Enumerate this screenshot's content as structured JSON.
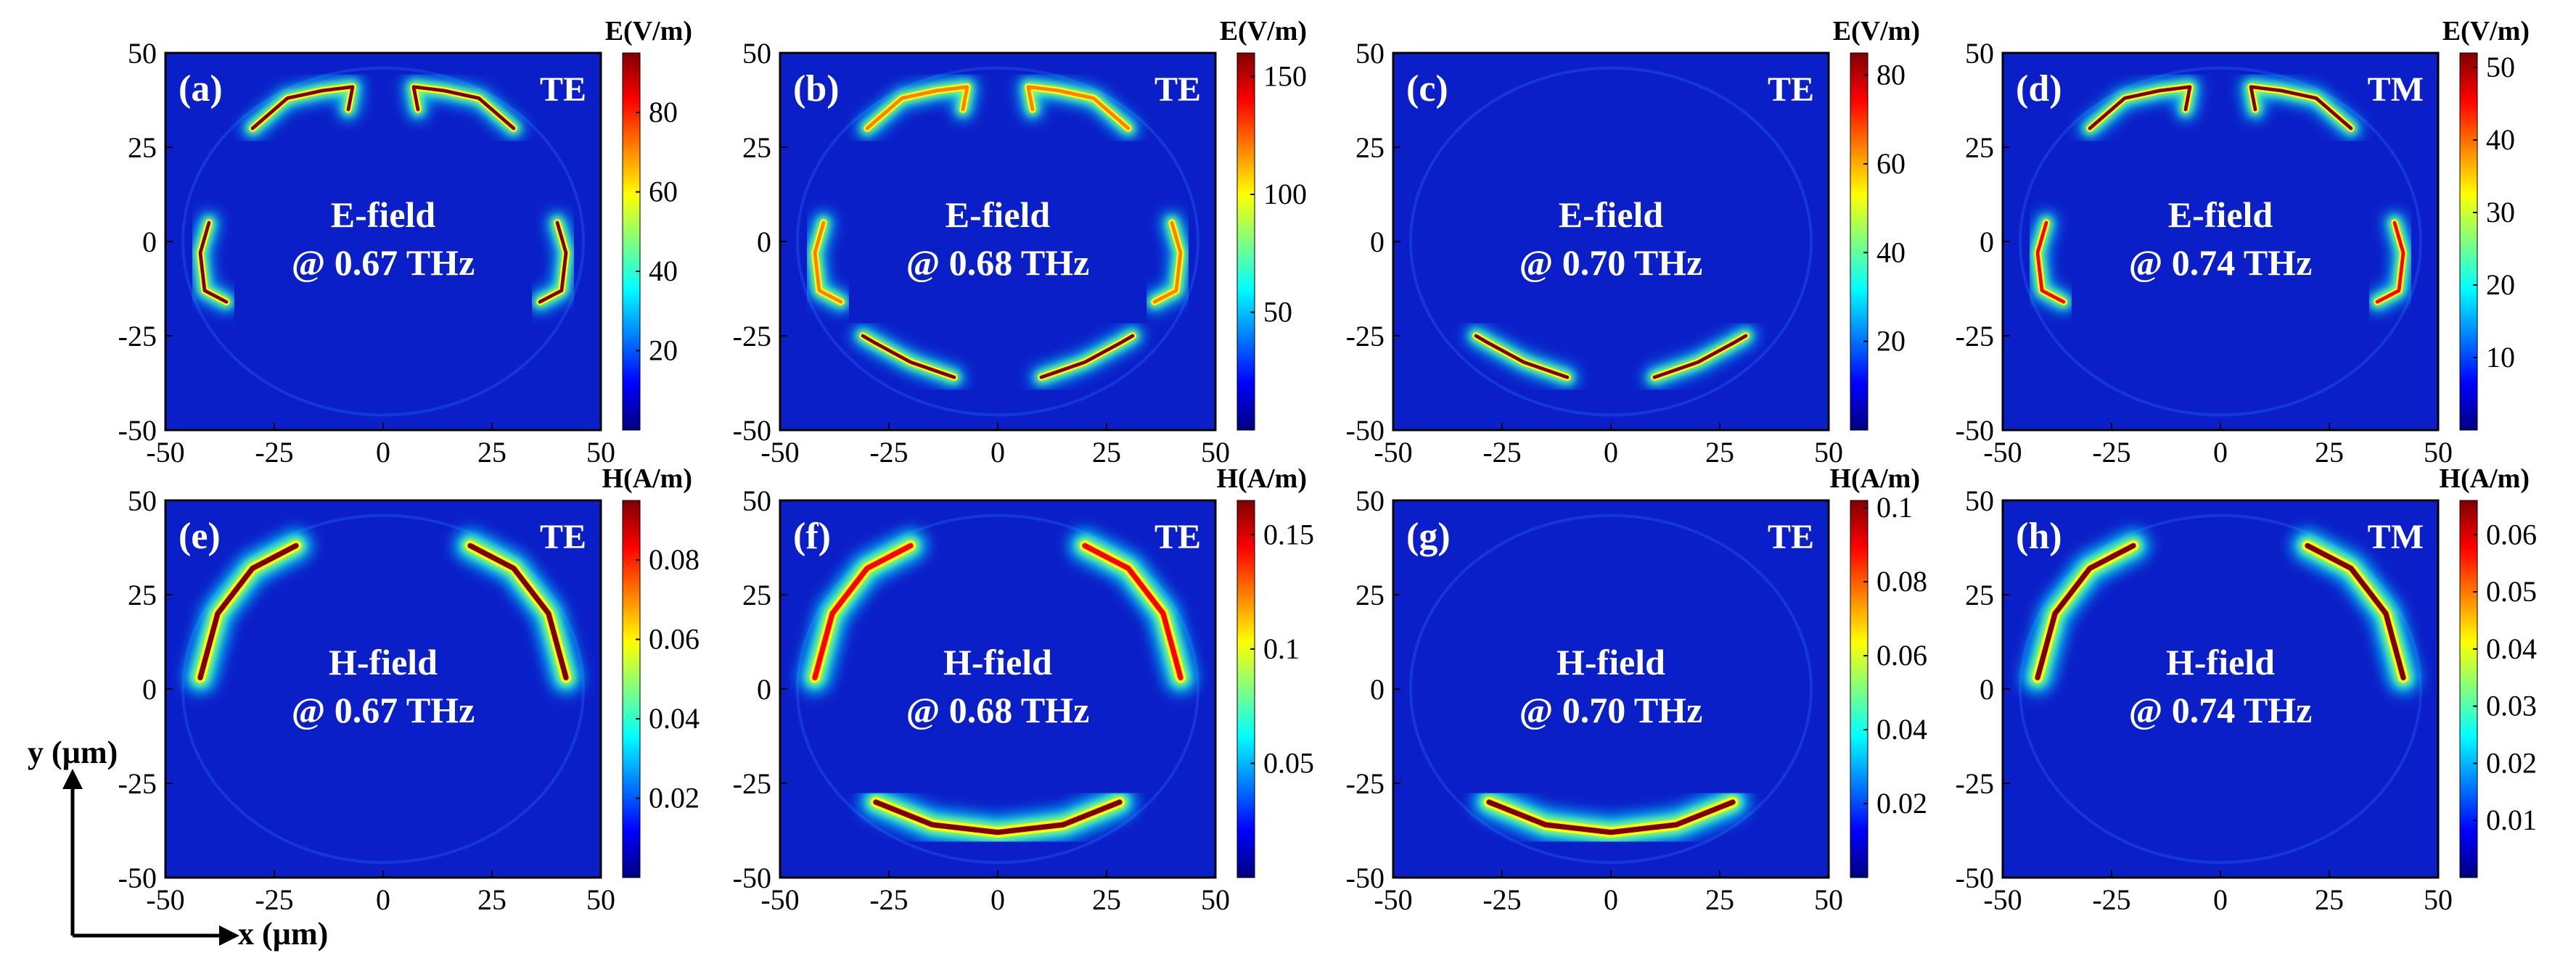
{
  "figure": {
    "axis_hint": {
      "y_label": "y (µm)",
      "x_label": "x (µm)"
    },
    "colors": {
      "background": "#0b1fc8",
      "colormap": [
        "#00007f",
        "#0000ff",
        "#0080ff",
        "#00ffff",
        "#80ff80",
        "#ffff00",
        "#ff8000",
        "#ff0000",
        "#7f0000"
      ],
      "text": "#ffffff"
    }
  },
  "chart_data": [
    {
      "type": "heatmap",
      "label": "(a)",
      "mode": "TE",
      "field": "E-field",
      "freq": "@ 0.67 THz",
      "colorbar": {
        "title": "E(V/m)",
        "ticks": [
          "20",
          "40",
          "60",
          "80"
        ],
        "tick_values": [
          20,
          40,
          60,
          80
        ],
        "range": [
          0,
          95
        ]
      },
      "xlim": [
        -50,
        50
      ],
      "ylim": [
        -50,
        50
      ],
      "xticks": [
        "-50",
        "-25",
        "0",
        "25",
        "50"
      ],
      "yticks": [
        "50",
        "25",
        "0",
        "-25",
        "-50"
      ],
      "hotspots": [
        {
          "path": [
            [
              -40,
              5
            ],
            [
              -42,
              -3
            ],
            [
              -41,
              -13
            ],
            [
              -36,
              -16
            ]
          ],
          "peak": 90
        },
        {
          "path": [
            [
              40,
              5
            ],
            [
              42,
              -3
            ],
            [
              41,
              -13
            ],
            [
              36,
              -16
            ]
          ],
          "peak": 90
        },
        {
          "path": [
            [
              -30,
              30
            ],
            [
              -22,
              38
            ],
            [
              -14,
              40
            ],
            [
              -7,
              41
            ],
            [
              -8,
              35
            ]
          ],
          "peak": 92
        },
        {
          "path": [
            [
              30,
              30
            ],
            [
              22,
              38
            ],
            [
              14,
              40
            ],
            [
              7,
              41
            ],
            [
              8,
              35
            ]
          ],
          "peak": 92
        }
      ]
    },
    {
      "type": "heatmap",
      "label": "(b)",
      "mode": "TE",
      "field": "E-field",
      "freq": "@ 0.68 THz",
      "colorbar": {
        "title": "E(V/m)",
        "ticks": [
          "50",
          "100",
          "150"
        ],
        "tick_values": [
          50,
          100,
          150
        ],
        "range": [
          0,
          160
        ]
      },
      "xlim": [
        -50,
        50
      ],
      "ylim": [
        -50,
        50
      ],
      "xticks": [
        "-50",
        "-25",
        "0",
        "25",
        "50"
      ],
      "yticks": [
        "50",
        "25",
        "0",
        "-25",
        "-50"
      ],
      "hotspots": [
        {
          "path": [
            [
              -40,
              5
            ],
            [
              -42,
              -3
            ],
            [
              -41,
              -13
            ],
            [
              -36,
              -16
            ]
          ],
          "peak": 110
        },
        {
          "path": [
            [
              40,
              5
            ],
            [
              42,
              -3
            ],
            [
              41,
              -13
            ],
            [
              36,
              -16
            ]
          ],
          "peak": 110
        },
        {
          "path": [
            [
              -30,
              30
            ],
            [
              -22,
              38
            ],
            [
              -14,
              40
            ],
            [
              -7,
              41
            ],
            [
              -8,
              35
            ]
          ],
          "peak": 120
        },
        {
          "path": [
            [
              30,
              30
            ],
            [
              22,
              38
            ],
            [
              14,
              40
            ],
            [
              7,
              41
            ],
            [
              8,
              35
            ]
          ],
          "peak": 120
        },
        {
          "path": [
            [
              -10,
              -36
            ],
            [
              -20,
              -32
            ],
            [
              -28,
              -27
            ],
            [
              -31,
              -25
            ]
          ],
          "peak": 150
        },
        {
          "path": [
            [
              10,
              -36
            ],
            [
              20,
              -32
            ],
            [
              28,
              -27
            ],
            [
              31,
              -25
            ]
          ],
          "peak": 150
        }
      ]
    },
    {
      "type": "heatmap",
      "label": "(c)",
      "mode": "TE",
      "field": "E-field",
      "freq": "@ 0.70 THz",
      "colorbar": {
        "title": "E(V/m)",
        "ticks": [
          "20",
          "40",
          "60",
          "80"
        ],
        "tick_values": [
          20,
          40,
          60,
          80
        ],
        "range": [
          0,
          85
        ]
      },
      "xlim": [
        -50,
        50
      ],
      "ylim": [
        -50,
        50
      ],
      "xticks": [
        "-50",
        "-25",
        "0",
        "25",
        "50"
      ],
      "yticks": [
        "50",
        "25",
        "0",
        "-25",
        "-50"
      ],
      "hotspots": [
        {
          "path": [
            [
              -10,
              -36
            ],
            [
              -20,
              -32
            ],
            [
              -28,
              -27
            ],
            [
              -31,
              -25
            ]
          ],
          "peak": 80
        },
        {
          "path": [
            [
              10,
              -36
            ],
            [
              20,
              -32
            ],
            [
              28,
              -27
            ],
            [
              31,
              -25
            ]
          ],
          "peak": 80
        }
      ]
    },
    {
      "type": "heatmap",
      "label": "(d)",
      "mode": "TM",
      "field": "E-field",
      "freq": "@ 0.74 THz",
      "colorbar": {
        "title": "E(V/m)",
        "ticks": [
          "10",
          "20",
          "30",
          "40",
          "50"
        ],
        "tick_values": [
          10,
          20,
          30,
          40,
          50
        ],
        "range": [
          0,
          52
        ]
      },
      "xlim": [
        -50,
        50
      ],
      "ylim": [
        -50,
        50
      ],
      "xticks": [
        "-50",
        "-25",
        "0",
        "25",
        "50"
      ],
      "yticks": [
        "50",
        "25",
        "0",
        "-25",
        "-50"
      ],
      "hotspots": [
        {
          "path": [
            [
              -40,
              5
            ],
            [
              -42,
              -3
            ],
            [
              -41,
              -13
            ],
            [
              -36,
              -16
            ]
          ],
          "peak": 48
        },
        {
          "path": [
            [
              40,
              5
            ],
            [
              42,
              -3
            ],
            [
              41,
              -13
            ],
            [
              36,
              -16
            ]
          ],
          "peak": 48
        },
        {
          "path": [
            [
              -30,
              30
            ],
            [
              -22,
              38
            ],
            [
              -14,
              40
            ],
            [
              -7,
              41
            ],
            [
              -8,
              35
            ]
          ],
          "peak": 50
        },
        {
          "path": [
            [
              30,
              30
            ],
            [
              22,
              38
            ],
            [
              14,
              40
            ],
            [
              7,
              41
            ],
            [
              8,
              35
            ]
          ],
          "peak": 50
        }
      ]
    },
    {
      "type": "heatmap",
      "label": "(e)",
      "mode": "TE",
      "field": "H-field",
      "freq": "@ 0.67 THz",
      "colorbar": {
        "title": "H(A/m)",
        "ticks": [
          "0.02",
          "0.04",
          "0.06",
          "0.08"
        ],
        "tick_values": [
          0.02,
          0.04,
          0.06,
          0.08
        ],
        "range": [
          0,
          0.095
        ]
      },
      "xlim": [
        -50,
        50
      ],
      "ylim": [
        -50,
        50
      ],
      "xticks": [
        "-50",
        "-25",
        "0",
        "25",
        "50"
      ],
      "yticks": [
        "50",
        "25",
        "0",
        "-25",
        "-50"
      ],
      "hotspots": [
        {
          "path": [
            [
              -42,
              3
            ],
            [
              -38,
              20
            ],
            [
              -30,
              32
            ],
            [
              -20,
              38
            ]
          ],
          "peak": 0.09
        },
        {
          "path": [
            [
              42,
              3
            ],
            [
              38,
              20
            ],
            [
              30,
              32
            ],
            [
              20,
              38
            ]
          ],
          "peak": 0.09
        }
      ]
    },
    {
      "type": "heatmap",
      "label": "(f)",
      "mode": "TE",
      "field": "H-field",
      "freq": "@ 0.68 THz",
      "colorbar": {
        "title": "H(A/m)",
        "ticks": [
          "0.05",
          "0.1",
          "0.15"
        ],
        "tick_values": [
          0.05,
          0.1,
          0.15
        ],
        "range": [
          0,
          0.165
        ]
      },
      "xlim": [
        -50,
        50
      ],
      "ylim": [
        -50,
        50
      ],
      "xticks": [
        "-50",
        "-25",
        "0",
        "25",
        "50"
      ],
      "yticks": [
        "50",
        "25",
        "0",
        "-25",
        "-50"
      ],
      "hotspots": [
        {
          "path": [
            [
              -42,
              3
            ],
            [
              -38,
              20
            ],
            [
              -30,
              32
            ],
            [
              -20,
              38
            ]
          ],
          "peak": 0.14
        },
        {
          "path": [
            [
              42,
              3
            ],
            [
              38,
              20
            ],
            [
              30,
              32
            ],
            [
              20,
              38
            ]
          ],
          "peak": 0.14
        },
        {
          "path": [
            [
              -28,
              -30
            ],
            [
              -15,
              -36
            ],
            [
              0,
              -38
            ],
            [
              15,
              -36
            ],
            [
              28,
              -30
            ]
          ],
          "peak": 0.16
        }
      ]
    },
    {
      "type": "heatmap",
      "label": "(g)",
      "mode": "TE",
      "field": "H-field",
      "freq": "@ 0.70 THz",
      "colorbar": {
        "title": "H(A/m)",
        "ticks": [
          "0.02",
          "0.04",
          "0.06",
          "0.08",
          "0.1"
        ],
        "tick_values": [
          0.02,
          0.04,
          0.06,
          0.08,
          0.1
        ],
        "range": [
          0,
          0.102
        ]
      },
      "xlim": [
        -50,
        50
      ],
      "ylim": [
        -50,
        50
      ],
      "xticks": [
        "-50",
        "-25",
        "0",
        "25",
        "50"
      ],
      "yticks": [
        "50",
        "25",
        "0",
        "-25",
        "-50"
      ],
      "hotspots": [
        {
          "path": [
            [
              -28,
              -30
            ],
            [
              -15,
              -36
            ],
            [
              0,
              -38
            ],
            [
              15,
              -36
            ],
            [
              28,
              -30
            ]
          ],
          "peak": 0.1
        }
      ]
    },
    {
      "type": "heatmap",
      "label": "(h)",
      "mode": "TM",
      "field": "H-field",
      "freq": "@ 0.74 THz",
      "colorbar": {
        "title": "H(A/m)",
        "ticks": [
          "0.01",
          "0.02",
          "0.03",
          "0.04",
          "0.05",
          "0.06"
        ],
        "tick_values": [
          0.01,
          0.02,
          0.03,
          0.04,
          0.05,
          0.06
        ],
        "range": [
          0,
          0.066
        ]
      },
      "xlim": [
        -50,
        50
      ],
      "ylim": [
        -50,
        50
      ],
      "xticks": [
        "-50",
        "-25",
        "0",
        "25",
        "50"
      ],
      "yticks": [
        "50",
        "25",
        "0",
        "-25",
        "-50"
      ],
      "hotspots": [
        {
          "path": [
            [
              -42,
              3
            ],
            [
              -38,
              20
            ],
            [
              -30,
              32
            ],
            [
              -20,
              38
            ]
          ],
          "peak": 0.062
        },
        {
          "path": [
            [
              42,
              3
            ],
            [
              38,
              20
            ],
            [
              30,
              32
            ],
            [
              20,
              38
            ]
          ],
          "peak": 0.062
        }
      ]
    }
  ]
}
